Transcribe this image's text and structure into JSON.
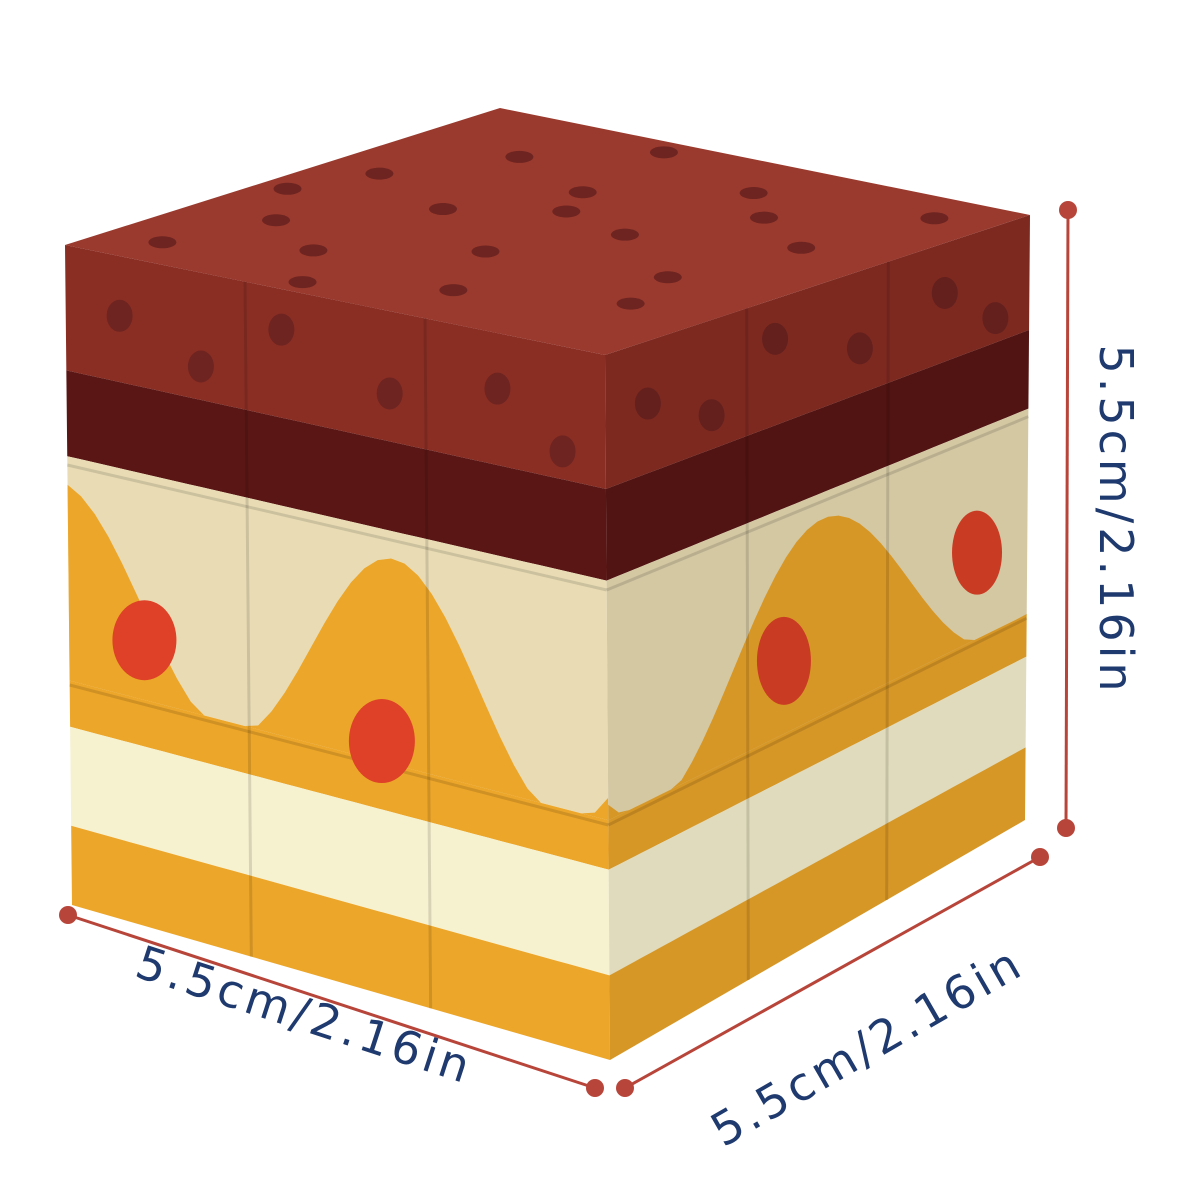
{
  "product": {
    "type": "cake-themed puzzle cube",
    "colors": {
      "sponge_top": "#9a3a2e",
      "sponge_side": "#8a2e24",
      "sponge_dark": "#5a1614",
      "dots": "#6e2420",
      "cream": "#e9dcb4",
      "orange": "#eca62a",
      "light_cream": "#f6f1cf",
      "cherry": "#de4127"
    }
  },
  "dimensions": {
    "height_label": "5.5cm/2.16in",
    "width_label": "5.5cm/2.16in",
    "depth_label": "5.5cm/2.16in",
    "line_color": "#b8453a",
    "text_color": "#1f3a6e"
  }
}
